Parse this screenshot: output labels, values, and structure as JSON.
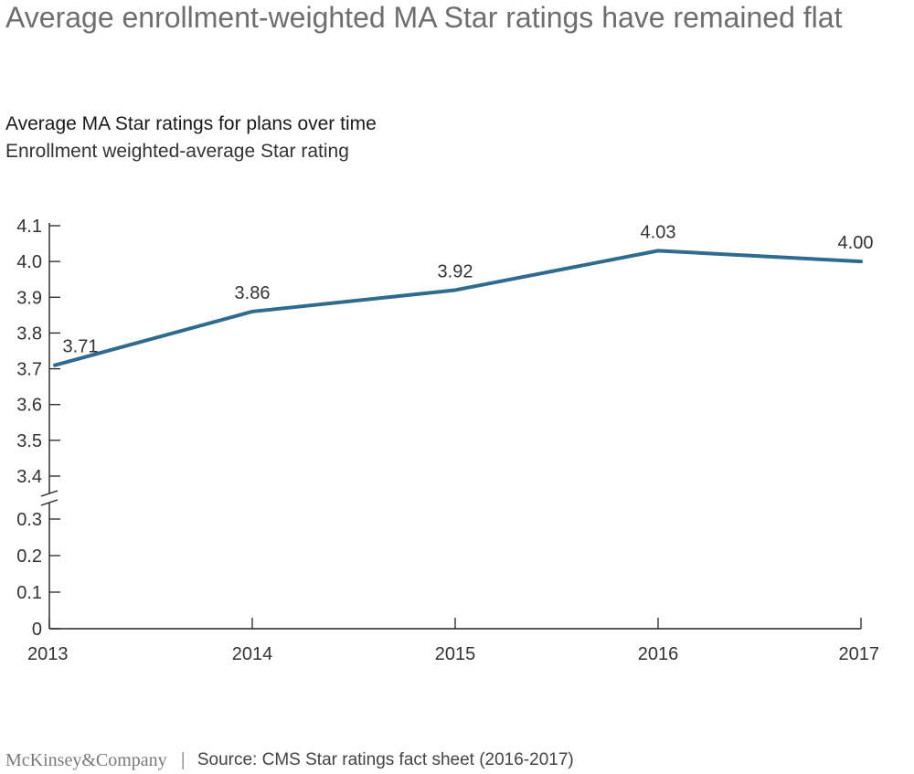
{
  "header": {
    "title": "Average enrollment-weighted MA Star ratings have remained flat",
    "subtitle": "Average MA Star ratings for plans over time",
    "unit_label": "Enrollment weighted-average Star rating"
  },
  "footer": {
    "brand": "McKinsey&Company",
    "separator": "|",
    "source": "Source: CMS Star ratings fact sheet (2016-2017)"
  },
  "colors": {
    "line": "#2e6b8e",
    "axis": "#222222",
    "text": "#333333"
  },
  "chart_data": {
    "type": "line",
    "title": "Average MA Star ratings for plans over time",
    "ylabel": "Enrollment weighted-average Star rating",
    "xlabel": "",
    "x": [
      "2013",
      "2014",
      "2015",
      "2016",
      "2017"
    ],
    "series": [
      {
        "values": [
          3.71,
          3.86,
          3.92,
          4.03,
          4.0
        ],
        "labels": [
          "3.71",
          "3.86",
          "3.92",
          "4.03",
          "4.00"
        ]
      }
    ],
    "y_axis": {
      "broken": true,
      "lower_segment": {
        "range": [
          0,
          0.3
        ],
        "ticks": [
          "0",
          "0.1",
          "0.2",
          "0.3"
        ]
      },
      "upper_segment": {
        "range": [
          3.4,
          4.1
        ],
        "ticks": [
          "3.4",
          "3.5",
          "3.6",
          "3.7",
          "3.8",
          "3.9",
          "4.0",
          "4.1"
        ]
      }
    },
    "grid": false,
    "legend": "none"
  }
}
